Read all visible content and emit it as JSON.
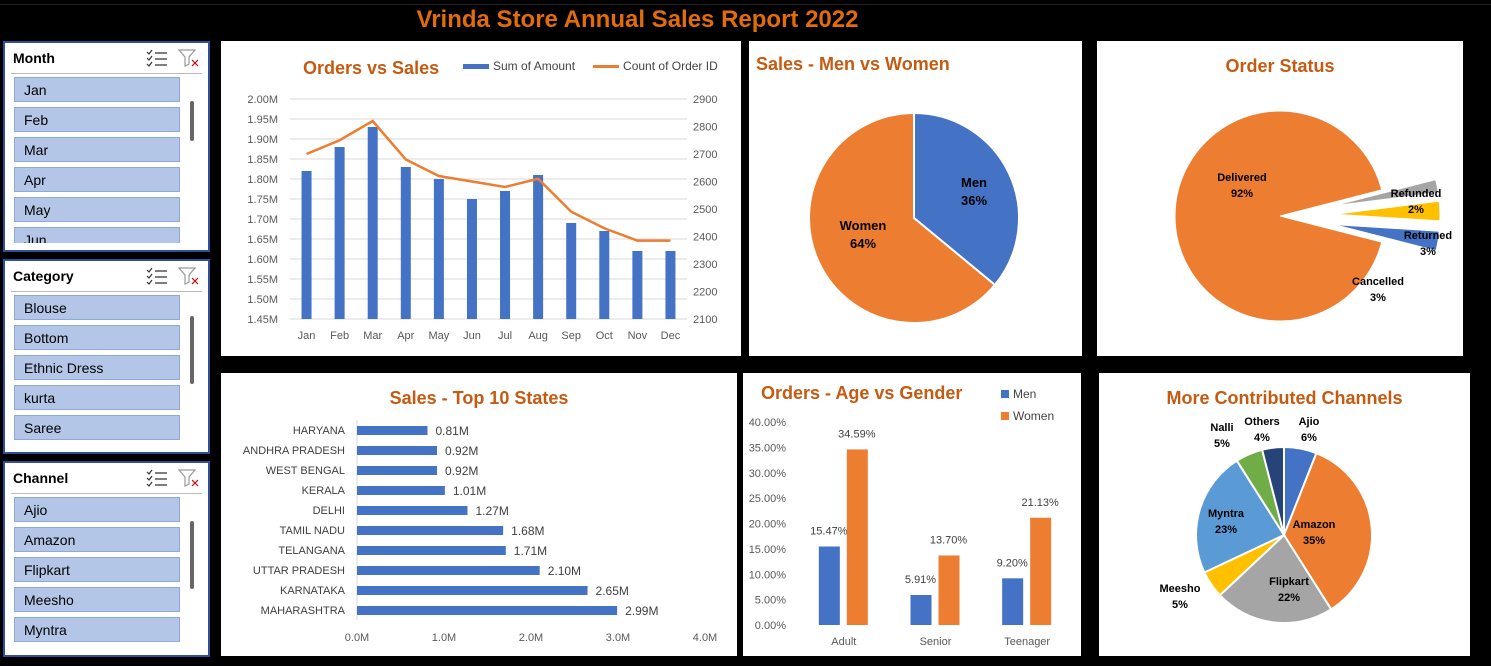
{
  "report_title": "Vrinda Store Annual Sales Report 2022",
  "slicers": {
    "month": {
      "label": "Month",
      "items": [
        "Jan",
        "Feb",
        "Mar",
        "Apr",
        "May",
        "Jun"
      ]
    },
    "category": {
      "label": "Category",
      "items": [
        "Blouse",
        "Bottom",
        "Ethnic Dress",
        "kurta",
        "Saree"
      ]
    },
    "channel": {
      "label": "Channel",
      "items": [
        "Ajio",
        "Amazon",
        "Flipkart",
        "Meesho",
        "Myntra"
      ]
    }
  },
  "icons": {
    "multi_select": "multi-select-icon",
    "clear_filter": "clear-filter-icon"
  },
  "colors": {
    "blue": "#4472C4",
    "orange": "#ED7D31",
    "gray": "#A5A5A5",
    "yellow": "#FFC000",
    "lightblue": "#5B9BD5",
    "green": "#70AD47",
    "navy": "#264478",
    "title": "#C55A11"
  },
  "charts": {
    "orders_vs_sales": {
      "title": "Orders vs Sales",
      "legend": [
        "Sum of Amount",
        "Count of Order ID"
      ]
    },
    "men_vs_women": {
      "title": "Sales - Men vs Women"
    },
    "order_status": {
      "title": "Order Status"
    },
    "top_states": {
      "title": "Sales - Top 10 States"
    },
    "age_gender": {
      "title": "Orders -  Age vs Gender",
      "legend": [
        "Men",
        "Women"
      ]
    },
    "channels": {
      "title": "More Contributed Channels"
    }
  },
  "chart_data": [
    {
      "id": "orders_vs_sales",
      "type": "bar",
      "title": "Orders vs Sales",
      "categories": [
        "Jan",
        "Feb",
        "Mar",
        "Apr",
        "May",
        "Jun",
        "Jul",
        "Aug",
        "Sep",
        "Oct",
        "Nov",
        "Dec"
      ],
      "series": [
        {
          "name": "Sum of Amount",
          "type": "bar",
          "axis": "left",
          "values": [
            1.82,
            1.88,
            1.93,
            1.83,
            1.8,
            1.75,
            1.77,
            1.81,
            1.69,
            1.67,
            1.62,
            1.62
          ]
        },
        {
          "name": "Count of Order ID",
          "type": "line",
          "axis": "right",
          "values": [
            2700,
            2750,
            2820,
            2680,
            2620,
            2600,
            2580,
            2610,
            2490,
            2430,
            2385,
            2385
          ]
        }
      ],
      "ylim": [
        1.45,
        2.0
      ],
      "yticks": [
        "1.45M",
        "1.50M",
        "1.55M",
        "1.60M",
        "1.65M",
        "1.70M",
        "1.75M",
        "1.80M",
        "1.85M",
        "1.90M",
        "1.95M",
        "2.00M"
      ],
      "y2lim": [
        2100,
        2900
      ],
      "y2ticks": [
        "2100",
        "2200",
        "2300",
        "2400",
        "2500",
        "2600",
        "2700",
        "2800",
        "2900"
      ],
      "grid": true,
      "legend_position": "top"
    },
    {
      "id": "men_vs_women",
      "type": "pie",
      "title": "Sales - Men vs Women",
      "slices": [
        {
          "label": "Men",
          "value": 36,
          "text": "36%"
        },
        {
          "label": "Women",
          "value": 64,
          "text": "64%"
        }
      ]
    },
    {
      "id": "order_status",
      "type": "pie",
      "title": "Order Status",
      "slices": [
        {
          "label": "Delivered",
          "value": 92,
          "text": "92%"
        },
        {
          "label": "Refunded",
          "value": 2,
          "text": "2%"
        },
        {
          "label": "Returned",
          "value": 3,
          "text": "3%"
        },
        {
          "label": "Cancelled",
          "value": 3,
          "text": "3%"
        }
      ]
    },
    {
      "id": "top_states",
      "type": "bar",
      "orientation": "horizontal",
      "title": "Sales - Top 10 States",
      "categories": [
        "HARYANA",
        "ANDHRA PRADESH",
        "WEST BENGAL",
        "KERALA",
        "DELHI",
        "TAMIL NADU",
        "TELANGANA",
        "UTTAR PRADESH",
        "KARNATAKA",
        "MAHARASHTRA"
      ],
      "values": [
        0.81,
        0.92,
        0.92,
        1.01,
        1.27,
        1.68,
        1.71,
        2.1,
        2.65,
        2.99
      ],
      "labels": [
        "0.81M",
        "0.92M",
        "0.92M",
        "1.01M",
        "1.27M",
        "1.68M",
        "1.71M",
        "2.10M",
        "2.65M",
        "2.99M"
      ],
      "xlim": [
        0,
        4
      ],
      "xticks": [
        "0.0M",
        "1.0M",
        "2.0M",
        "3.0M",
        "4.0M"
      ]
    },
    {
      "id": "age_gender",
      "type": "bar",
      "title": "Orders -  Age vs Gender",
      "categories": [
        "Adult",
        "Senior",
        "Teenager"
      ],
      "series": [
        {
          "name": "Men",
          "values": [
            15.47,
            5.91,
            9.2
          ],
          "labels": [
            "15.47%",
            "5.91%",
            "9.20%"
          ]
        },
        {
          "name": "Women",
          "values": [
            34.59,
            13.7,
            21.13
          ],
          "labels": [
            "34.59%",
            "13.70%",
            "21.13%"
          ]
        }
      ],
      "ylim": [
        0,
        40
      ],
      "yticks": [
        "0.00%",
        "5.00%",
        "10.00%",
        "15.00%",
        "20.00%",
        "25.00%",
        "30.00%",
        "35.00%",
        "40.00%"
      ],
      "legend_position": "top-right"
    },
    {
      "id": "channels",
      "type": "pie",
      "title": "More Contributed Channels",
      "slices": [
        {
          "label": "Ajio",
          "value": 6,
          "text": "6%"
        },
        {
          "label": "Amazon",
          "value": 35,
          "text": "35%"
        },
        {
          "label": "Flipkart",
          "value": 22,
          "text": "22%"
        },
        {
          "label": "Meesho",
          "value": 5,
          "text": "5%"
        },
        {
          "label": "Myntra",
          "value": 23,
          "text": "23%"
        },
        {
          "label": "Nalli",
          "value": 5,
          "text": "5%"
        },
        {
          "label": "Others",
          "value": 4,
          "text": "4%"
        }
      ]
    }
  ]
}
